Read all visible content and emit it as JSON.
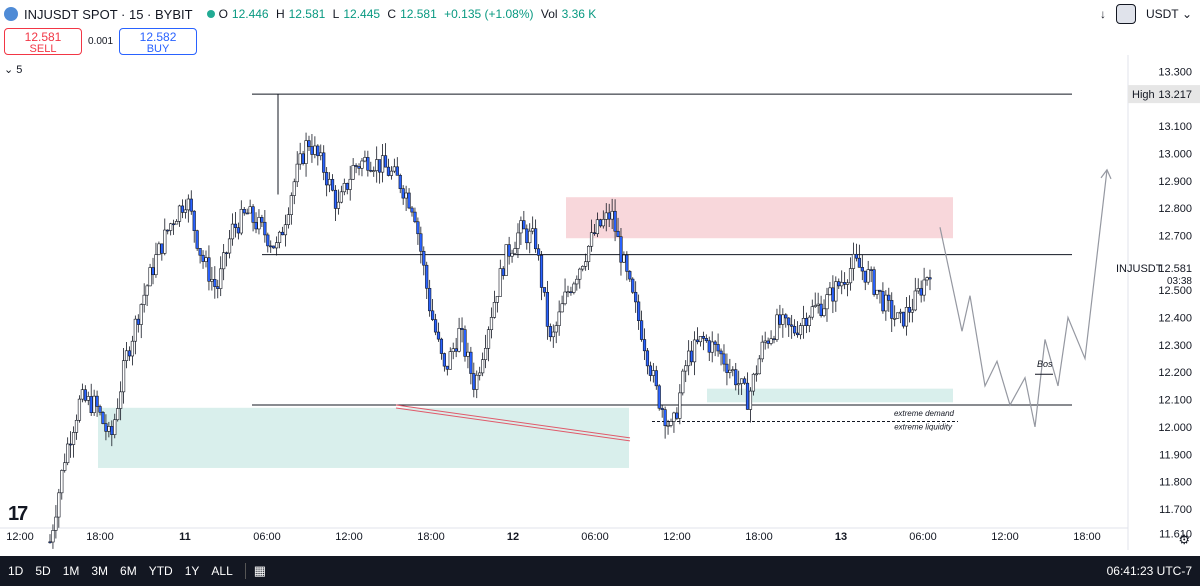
{
  "header": {
    "title": "INJUSDT SPOT · 15 · BYBIT",
    "ohlc": {
      "o_label": "O",
      "o": "12.446",
      "h_label": "H",
      "h": "12.581",
      "l_label": "L",
      "l": "12.445",
      "c_label": "C",
      "c": "12.581",
      "change": "+0.135 (+1.08%)",
      "vol_label": "Vol",
      "vol": "3.36 K"
    },
    "currency": "USDT"
  },
  "trade": {
    "sell_price": "12.581",
    "sell_label": "SELL",
    "spread": "0.001",
    "buy_price": "12.582",
    "buy_label": "BUY"
  },
  "indicator_toggle": "5",
  "bottom": {
    "ranges": [
      "1D",
      "5D",
      "1M",
      "3M",
      "6M",
      "YTD",
      "1Y",
      "ALL"
    ],
    "clock": "06:41:23 UTC-7"
  },
  "colors": {
    "up": "#089981",
    "down": "#2962ff",
    "supply": "#f8d7db",
    "demand": "#d9efec",
    "liquidity_line": "#e05a6a"
  },
  "chart_data": {
    "type": "candlestick",
    "symbol": "INJUSDT",
    "ylim": [
      11.55,
      13.36
    ],
    "y_ticks": [
      "13.300",
      "13.100",
      "13.000",
      "12.900",
      "12.800",
      "12.700",
      "12.500",
      "12.400",
      "12.300",
      "12.200",
      "12.100",
      "12.000",
      "11.900",
      "11.800",
      "11.700",
      "11.610"
    ],
    "x_ticks": [
      "12:00",
      "18:00",
      "11",
      "06:00",
      "12:00",
      "18:00",
      "12",
      "06:00",
      "12:00",
      "18:00",
      "13",
      "06:00",
      "12:00",
      "18:00"
    ],
    "last_price": {
      "symbol": "INJUSDT",
      "value": "12.581",
      "countdown": "03:38"
    },
    "high_label": {
      "label": "High",
      "value": "13.217"
    },
    "levels": [
      13.217,
      12.63,
      12.08
    ],
    "zones": [
      {
        "kind": "supply",
        "y_low": 12.69,
        "y_high": 12.84
      },
      {
        "kind": "demand",
        "y_low": 11.85,
        "y_high": 12.07
      },
      {
        "kind": "demand",
        "y_low": 12.09,
        "y_high": 12.14
      }
    ],
    "annotations": [
      "extreme demand",
      "extreme liquidity",
      "Bos"
    ],
    "liquidity_line_y": 12.02,
    "close_path": [
      11.58,
      11.9,
      12.1,
      12.08,
      11.95,
      12.25,
      12.45,
      12.62,
      12.75,
      12.84,
      12.62,
      12.5,
      12.72,
      12.78,
      12.72,
      12.65,
      12.88,
      13.05,
      12.95,
      12.8,
      12.95,
      12.98,
      12.95,
      12.9,
      12.8,
      12.45,
      12.2,
      12.35,
      12.15,
      12.4,
      12.62,
      12.72,
      12.68,
      12.3,
      12.48,
      12.6,
      12.72,
      12.78,
      12.55,
      12.35,
      12.12,
      11.98,
      12.25,
      12.32,
      12.28,
      12.2,
      12.1,
      12.3,
      12.38,
      12.35,
      12.42,
      12.45,
      12.52,
      12.6,
      12.55,
      12.45,
      12.38,
      12.46,
      12.58
    ],
    "projection": [
      12.73,
      12.35,
      12.48,
      12.15,
      12.24,
      12.08,
      12.18,
      12.0,
      12.32,
      12.15,
      12.4,
      12.25,
      12.94
    ]
  }
}
